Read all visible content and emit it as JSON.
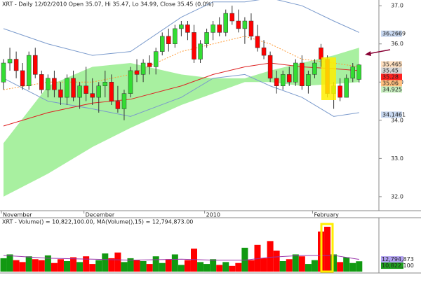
{
  "chart_data": [
    {
      "type": "candlestick",
      "title": "XRT - Daily 12/02/2010 Open 35.07, Hi 35.47, Lo 34.99, Close 35.45 (0.0%)",
      "categories": [
        "November",
        null,
        null,
        null,
        null,
        null,
        null,
        null,
        null,
        null,
        null,
        null,
        null,
        "December",
        null,
        null,
        null,
        null,
        null,
        null,
        null,
        null,
        null,
        null,
        null,
        null,
        null,
        null,
        null,
        null,
        null,
        null,
        "2010",
        null,
        null,
        null,
        null,
        null,
        null,
        null,
        null,
        null,
        null,
        null,
        null,
        null,
        null,
        null,
        null,
        "February",
        null,
        null,
        null,
        null,
        null,
        null,
        null
      ],
      "open": [
        35.0,
        35.5,
        35.6,
        35.3,
        34.9,
        35.7,
        35.2,
        34.8,
        35.1,
        34.8,
        34.6,
        35.1,
        34.6,
        34.9,
        34.7,
        34.6,
        34.9,
        35.0,
        34.5,
        34.3,
        34.7,
        35.3,
        35.2,
        35.5,
        35.4,
        35.8,
        36.2,
        36.0,
        36.4,
        36.5,
        36.3,
        35.6,
        36.0,
        36.3,
        36.5,
        36.3,
        36.8,
        36.6,
        36.4,
        36.6,
        36.2,
        35.9,
        35.7,
        35.1,
        34.9,
        35.2,
        35.0,
        35.5,
        34.9,
        35.2,
        35.9,
        35.6,
        34.7,
        34.9,
        34.6,
        35.1,
        35.07
      ],
      "high": [
        35.6,
        35.9,
        35.8,
        35.5,
        35.8,
        35.9,
        35.3,
        35.2,
        35.3,
        35.0,
        35.2,
        35.3,
        35.0,
        35.4,
        35.1,
        35.0,
        35.3,
        35.2,
        34.9,
        34.8,
        35.4,
        35.6,
        35.6,
        35.7,
        35.9,
        36.3,
        36.4,
        36.5,
        36.6,
        36.6,
        36.5,
        36.1,
        36.4,
        36.6,
        36.7,
        36.9,
        37.0,
        36.9,
        36.7,
        36.8,
        36.5,
        36.1,
        35.8,
        35.3,
        35.3,
        35.4,
        35.6,
        35.7,
        35.3,
        35.6,
        36.0,
        35.7,
        35.0,
        35.1,
        35.2,
        35.5,
        35.47
      ],
      "low": [
        34.8,
        35.3,
        35.1,
        34.8,
        34.8,
        35.1,
        34.7,
        34.6,
        34.6,
        34.4,
        34.4,
        34.5,
        34.3,
        34.5,
        34.4,
        34.2,
        34.6,
        34.4,
        34.2,
        34.0,
        34.6,
        35.0,
        35.0,
        35.2,
        35.2,
        35.7,
        35.8,
        35.9,
        36.2,
        36.1,
        35.5,
        35.5,
        35.9,
        36.1,
        36.2,
        36.2,
        36.5,
        36.3,
        36.0,
        36.1,
        35.8,
        35.6,
        35.0,
        34.7,
        34.8,
        34.9,
        34.9,
        34.8,
        34.7,
        35.1,
        35.4,
        34.6,
        34.3,
        34.5,
        34.6,
        35.0,
        34.99
      ],
      "close": [
        35.5,
        35.6,
        35.3,
        34.9,
        35.7,
        35.2,
        34.8,
        35.1,
        34.8,
        34.6,
        35.1,
        34.6,
        34.9,
        34.7,
        34.6,
        34.9,
        35.0,
        34.5,
        34.3,
        34.7,
        35.3,
        35.2,
        35.5,
        35.4,
        35.8,
        36.2,
        36.0,
        36.4,
        36.5,
        36.3,
        35.6,
        36.0,
        36.3,
        36.5,
        36.3,
        36.8,
        36.6,
        36.4,
        36.6,
        36.2,
        35.9,
        35.7,
        35.1,
        34.9,
        35.2,
        35.0,
        35.5,
        34.9,
        35.2,
        35.5,
        35.6,
        34.7,
        34.9,
        34.6,
        35.1,
        35.4,
        35.45
      ],
      "up_color": "#33dd33",
      "down_color": "#ff0000",
      "ylim": [
        31.65,
        37.15
      ],
      "yticks": [
        {
          "value": 37,
          "label": "37.0"
        },
        {
          "value": 36,
          "label": "36.0"
        },
        {
          "value": 35,
          "label": "35.0"
        },
        {
          "value": 34,
          "label": "34.0"
        },
        {
          "value": 33,
          "label": "33.0"
        },
        {
          "value": 32,
          "label": "32.0"
        }
      ],
      "cloud": {
        "color": "#a8f0a0",
        "x": [
          0,
          7,
          14,
          20,
          28,
          33,
          38,
          42,
          47,
          52,
          56
        ],
        "top": [
          33.4,
          34.9,
          35.4,
          35.5,
          35.2,
          35.1,
          35.1,
          35.3,
          35.5,
          35.7,
          35.9
        ],
        "bottom": [
          32.0,
          32.6,
          33.3,
          33.8,
          34.4,
          34.7,
          35.0,
          35.0,
          34.9,
          34.95,
          35.0
        ]
      },
      "lines": [
        {
          "color": "#7a9acc",
          "dash": false,
          "x": [
            0,
            7,
            14,
            20,
            28,
            33,
            38,
            42,
            47,
            52,
            56
          ],
          "values": [
            36.4,
            36.0,
            35.7,
            35.8,
            36.7,
            37.1,
            37.1,
            37.2,
            37.0,
            36.6,
            36.3
          ]
        },
        {
          "color": "#7a9acc",
          "dash": false,
          "x": [
            0,
            7,
            14,
            20,
            28,
            33,
            38,
            42,
            47,
            52,
            56
          ],
          "values": [
            35.1,
            34.5,
            34.3,
            34.1,
            34.6,
            35.1,
            35.2,
            34.9,
            34.6,
            34.1,
            34.2
          ]
        },
        {
          "color": "#dd2222",
          "dash": false,
          "x": [
            0,
            7,
            14,
            20,
            28,
            33,
            38,
            42,
            47,
            52,
            56
          ],
          "values": [
            33.85,
            34.2,
            34.45,
            34.55,
            34.9,
            35.2,
            35.4,
            35.5,
            35.4,
            35.35,
            35.3
          ]
        },
        {
          "color": "#ff9933",
          "dash": true,
          "x": [
            0,
            7,
            14,
            20,
            28,
            33,
            38,
            42,
            47,
            52,
            56
          ],
          "values": [
            34.8,
            35.0,
            35.0,
            35.2,
            35.8,
            36.0,
            36.2,
            36.0,
            35.6,
            35.5,
            35.4
          ]
        }
      ],
      "price_labels": [
        {
          "value": 36.2669,
          "color": "#c8d8f0",
          "text_color": "#000000"
        },
        {
          "value": 35.465,
          "color": "#ffe0c0",
          "text_color": "#000000"
        },
        {
          "value": 35.45,
          "color": "#d8d8d8",
          "text_color": "#000000"
        },
        {
          "value": 35.28,
          "color": "#ff2020",
          "text_color": "#ffffff"
        },
        {
          "value": 35.06,
          "color": "#ffc080",
          "text_color": "#000000"
        },
        {
          "value": 34.925,
          "color": "#c8f0c0",
          "text_color": "#000000"
        },
        {
          "value": 34.1461,
          "color": "#c8d8f0",
          "text_color": "#000000"
        }
      ]
    },
    {
      "type": "bar",
      "title": "XRT - Volume() = 10,822,100.00, MA(Volume(),15) = 12,794,873.00",
      "values": [
        14000000,
        18000000,
        12000000,
        10000000,
        16000000,
        13000000,
        12000000,
        17000000,
        9000000,
        13000000,
        11000000,
        15000000,
        10000000,
        16000000,
        8000000,
        12000000,
        19000000,
        14000000,
        20000000,
        10000000,
        14000000,
        12000000,
        11000000,
        8000000,
        16000000,
        9000000,
        13000000,
        18000000,
        7000000,
        12000000,
        24000000,
        10000000,
        8000000,
        13000000,
        7000000,
        10000000,
        6000000,
        9000000,
        25000000,
        12000000,
        28000000,
        14000000,
        32000000,
        22000000,
        11000000,
        13000000,
        18000000,
        16000000,
        8000000,
        12000000,
        42000000,
        47000000,
        18000000,
        10000000,
        15000000,
        9000000,
        10822100
      ],
      "ylim": [
        0,
        55000000
      ],
      "ma": {
        "color": "#9933aa",
        "x": [
          0,
          7,
          14,
          20,
          28,
          33,
          38,
          42,
          47,
          52,
          56
        ],
        "values": [
          17000000,
          14000000,
          13000000,
          12000000,
          13000000,
          12000000,
          12000000,
          15000000,
          17000000,
          17000000,
          12794873
        ]
      },
      "price_labels": [
        {
          "value": 12794873,
          "label": "12,794,873",
          "color": "#b0a0f0",
          "text_color": "#000000"
        },
        {
          "value": 10822100,
          "label": "10,822,100",
          "color": "#20a020",
          "text_color": "#ffffff"
        }
      ]
    }
  ]
}
